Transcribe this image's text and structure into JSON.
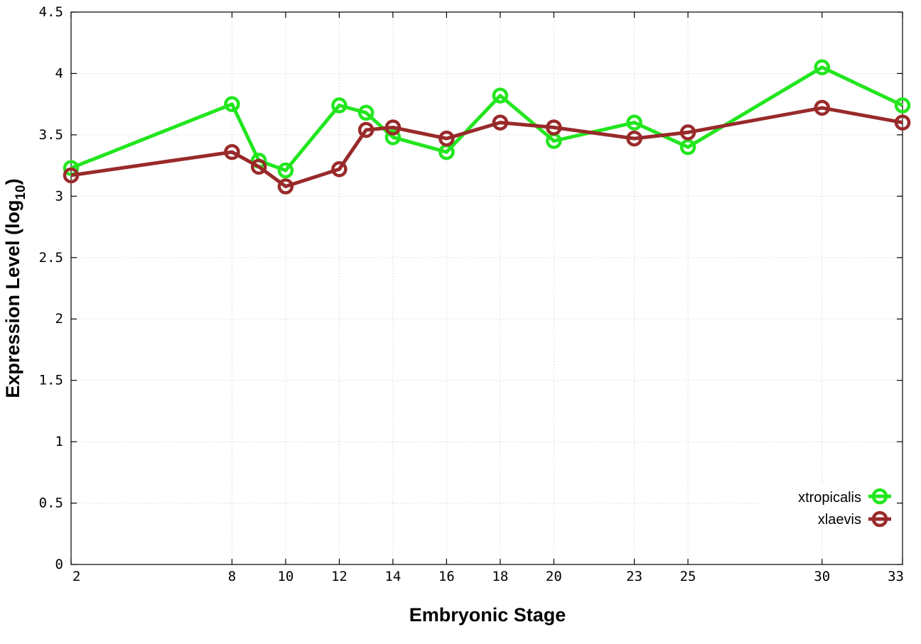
{
  "chart_data": {
    "type": "line",
    "xlabel": "Embryonic Stage",
    "ylabel_main": "Expression Level (log",
    "ylabel_sub": "10",
    "ylabel_close": ")",
    "xlim": [
      2,
      33
    ],
    "ylim": [
      0,
      4.5
    ],
    "x_ticks": [
      2,
      8,
      10,
      12,
      14,
      16,
      18,
      20,
      23,
      25,
      30,
      33
    ],
    "y_ticks": [
      0,
      0.5,
      1,
      1.5,
      2,
      2.5,
      3,
      3.5,
      4,
      4.5
    ],
    "grid": true,
    "legend_position": "bottom-right",
    "series": [
      {
        "name": "xtropicalis",
        "color": "#22e61e",
        "marker": "circle-open",
        "x": [
          2,
          8,
          9,
          10,
          12,
          13,
          14,
          16,
          18,
          20,
          23,
          25,
          30,
          33
        ],
        "y": [
          3.23,
          3.75,
          3.29,
          3.21,
          3.74,
          3.68,
          3.48,
          3.36,
          3.82,
          3.45,
          3.6,
          3.4,
          4.05,
          3.74
        ]
      },
      {
        "name": "xlaevis",
        "color": "#992a2a",
        "marker": "circle-open",
        "x": [
          2,
          8,
          9,
          10,
          12,
          13,
          14,
          16,
          18,
          20,
          23,
          25,
          30,
          33
        ],
        "y": [
          3.17,
          3.36,
          3.24,
          3.08,
          3.22,
          3.54,
          3.56,
          3.47,
          3.6,
          3.56,
          3.47,
          3.52,
          3.72,
          3.6
        ]
      }
    ]
  }
}
